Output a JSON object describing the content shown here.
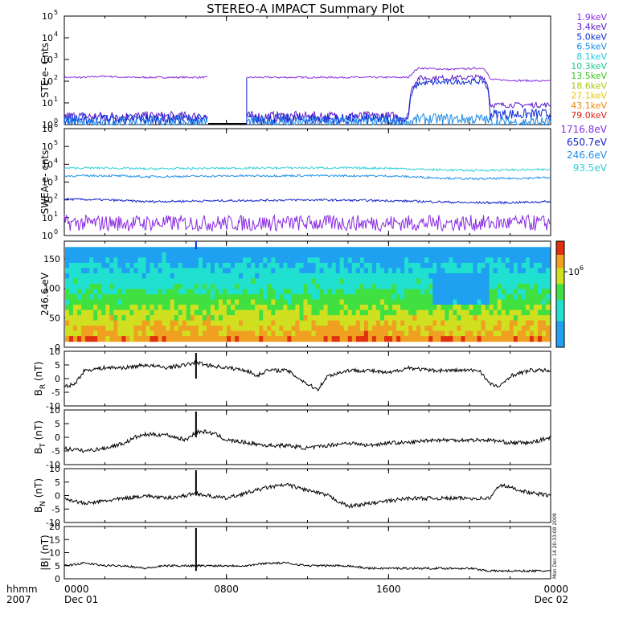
{
  "chart_data": [
    {
      "type": "line",
      "panel": "ste",
      "title": "STEREO-A IMPACT Summary Plot",
      "ylabel": "STE e- Cnts",
      "yscale": "log",
      "ylim": [
        1,
        100000
      ],
      "yticks": [
        {
          "base": "10",
          "exp": "0"
        },
        {
          "base": "10",
          "exp": "1"
        },
        {
          "base": "10",
          "exp": "2"
        },
        {
          "base": "10",
          "exp": "3"
        },
        {
          "base": "10",
          "exp": "4"
        },
        {
          "base": "10",
          "exp": "5"
        }
      ],
      "data_gap_hours": [
        7.1,
        9.0
      ],
      "legend_position": "right",
      "series": [
        {
          "name": "1.9keV",
          "color": "#8a2be2",
          "values_hours": [
            0,
            1,
            2,
            3,
            4,
            5,
            6,
            7,
            7.1,
            9.0,
            10,
            12,
            14,
            17,
            17.5,
            19,
            20.7,
            21,
            22,
            24
          ],
          "values": [
            150,
            150,
            170,
            150,
            150,
            150,
            150,
            150,
            150,
            150,
            150,
            150,
            150,
            150,
            400,
            350,
            400,
            120,
            110,
            100
          ]
        },
        {
          "name": "3.4keV",
          "color": "#5a18c8",
          "values_hours": [
            0,
            3,
            6,
            7.1,
            9,
            12,
            14,
            17,
            17.5,
            19,
            20.7,
            21,
            24
          ],
          "values": [
            2.3,
            2.3,
            2.3,
            2.3,
            2.3,
            2.3,
            2.3,
            2.3,
            140,
            140,
            150,
            8,
            8
          ]
        },
        {
          "name": "5.0keV",
          "color": "#0a2ad8",
          "values_hours": [
            0,
            3,
            6,
            7.1,
            9,
            12,
            14,
            17,
            17.5,
            19,
            20.7,
            21,
            24
          ],
          "values": [
            1.8,
            1.8,
            1.8,
            1.8,
            1.8,
            1.8,
            1.8,
            1.8,
            80,
            90,
            100,
            3,
            3
          ]
        },
        {
          "name": "6.5keV",
          "color": "#1a8ae8",
          "values_hours": [
            0,
            7.1,
            9,
            17,
            17.5,
            20.7,
            21,
            24
          ],
          "values": [
            1.3,
            1.3,
            1.3,
            1.3,
            1.8,
            1.8,
            1.3,
            1.3
          ]
        },
        {
          "name": "8.1keV",
          "color": "#20c8e0"
        },
        {
          "name": "10.3keV",
          "color": "#18c890"
        },
        {
          "name": "13.5keV",
          "color": "#38c818"
        },
        {
          "name": "18.6keV",
          "color": "#a8c810"
        },
        {
          "name": "27.1keV",
          "color": "#e8c810"
        },
        {
          "name": "43.1keV",
          "color": "#e88a10"
        },
        {
          "name": "79.0keV",
          "color": "#e02010"
        }
      ]
    },
    {
      "type": "line",
      "panel": "swea",
      "ylabel": "SWEA e- cnts",
      "yscale": "log",
      "ylim": [
        1,
        1000000
      ],
      "yticks": [
        {
          "base": "10",
          "exp": "0"
        },
        {
          "base": "10",
          "exp": "1"
        },
        {
          "base": "10",
          "exp": "2"
        },
        {
          "base": "10",
          "exp": "3"
        },
        {
          "base": "10",
          "exp": "4"
        },
        {
          "base": "10",
          "exp": "5"
        },
        {
          "base": "10",
          "exp": "6"
        }
      ],
      "legend_position": "right",
      "series": [
        {
          "name": "1716.8eV",
          "color": "#8a2be2",
          "values_hours": [
            0,
            24
          ],
          "values": [
            5,
            5
          ]
        },
        {
          "name": "650.7eV",
          "color": "#1020c8",
          "values_hours": [
            0,
            2,
            4,
            8,
            12,
            16,
            18,
            20,
            22,
            24
          ],
          "values": [
            110,
            100,
            80,
            90,
            100,
            90,
            80,
            70,
            70,
            80
          ]
        },
        {
          "name": "246.6eV",
          "color": "#2090e8",
          "values_hours": [
            0,
            2,
            4,
            8,
            12,
            16,
            18,
            20,
            22,
            24
          ],
          "values": [
            2200,
            2300,
            2000,
            2200,
            2300,
            2200,
            1800,
            1500,
            1600,
            1800
          ]
        },
        {
          "name": "93.5eV",
          "color": "#30d0d8",
          "values_hours": [
            0,
            2,
            4,
            8,
            12,
            16,
            18,
            20,
            22,
            24
          ],
          "values": [
            6000,
            6200,
            5500,
            6000,
            6300,
            6000,
            5000,
            4500,
            4800,
            5000
          ]
        }
      ]
    },
    {
      "type": "heatmap",
      "panel": "pad",
      "ylabel": "246.6 eV",
      "ylim": [
        0,
        180
      ],
      "yticks": [
        0,
        50,
        100,
        150
      ],
      "colorbar_label": {
        "base": "10",
        "exp": "6"
      }
    },
    {
      "type": "line",
      "panel": "br",
      "ylabel": {
        "main": "B",
        "sub": "R",
        "unit": "(nT)"
      },
      "ylim": [
        -10,
        10
      ],
      "yticks": [
        -10,
        -5,
        0,
        5,
        10
      ],
      "x_hours": [
        0,
        0.5,
        1,
        2,
        3,
        4,
        5,
        6,
        6.5,
        7,
        8,
        9,
        9.5,
        10,
        11,
        12,
        12.5,
        13,
        14,
        15,
        16,
        17,
        18,
        19,
        20,
        20.5,
        21,
        21.5,
        22,
        23,
        24
      ],
      "values": [
        -3,
        -2,
        3,
        4,
        4,
        5,
        4,
        5,
        6,
        5,
        4,
        3,
        1,
        3,
        3,
        -2,
        -4,
        1,
        3,
        3,
        2,
        4,
        3,
        3,
        3,
        3,
        -2,
        -3,
        1,
        3,
        3
      ],
      "spike_hour": 6.5
    },
    {
      "type": "line",
      "panel": "bt",
      "ylabel": {
        "main": "B",
        "sub": "T",
        "unit": "(nT)"
      },
      "ylim": [
        -10,
        10
      ],
      "yticks": [
        -10,
        -5,
        0,
        5,
        10
      ],
      "x_hours": [
        0,
        1,
        2,
        3,
        3.5,
        4,
        5,
        6,
        6.5,
        7,
        7.5,
        8,
        9,
        10,
        11,
        12,
        13,
        14,
        15,
        16,
        17,
        18,
        19,
        20,
        21,
        22,
        23,
        24
      ],
      "values": [
        -4,
        -5,
        -4,
        -2,
        0,
        1,
        1,
        -1,
        2,
        2,
        1,
        -1,
        -2,
        -3,
        -3,
        -4,
        -3,
        -2,
        -3,
        -2,
        -2,
        -1,
        -1,
        -1,
        -1,
        -2,
        -2,
        0
      ],
      "spike_hour": 6.5
    },
    {
      "type": "line",
      "panel": "bn",
      "ylabel": {
        "main": "B",
        "sub": "N",
        "unit": "(nT)"
      },
      "ylim": [
        -10,
        10
      ],
      "yticks": [
        -10,
        -5,
        0,
        5,
        10
      ],
      "x_hours": [
        0,
        1,
        2,
        3,
        4,
        5,
        6,
        6.5,
        7,
        8,
        9,
        10,
        11,
        12,
        13,
        14,
        15,
        16,
        17,
        18,
        19,
        20,
        21,
        21.5,
        22,
        23,
        24
      ],
      "values": [
        -1,
        -3,
        -2,
        -1,
        0,
        -1,
        0,
        1,
        0,
        -1,
        1,
        3,
        4,
        2,
        0,
        -4,
        -3,
        -2,
        -1,
        -1,
        -1,
        -1,
        -1,
        4,
        3,
        1,
        0
      ],
      "spike_hour": 6.5
    },
    {
      "type": "line",
      "panel": "babs",
      "ylabel": "|B| (nT)",
      "ylim": [
        0,
        20
      ],
      "yticks": [
        0,
        5,
        10,
        15,
        20
      ],
      "x_hours": [
        0,
        1,
        2,
        3,
        4,
        5,
        6,
        6.5,
        7,
        8,
        9,
        10,
        11,
        12,
        13,
        14,
        15,
        16,
        17,
        18,
        19,
        20,
        21,
        22,
        23,
        24
      ],
      "values": [
        5,
        6,
        5,
        5,
        4,
        5,
        5,
        5,
        5,
        5,
        5,
        6,
        6,
        5,
        5,
        5,
        4,
        4,
        4,
        4,
        4,
        4,
        3,
        3,
        3,
        3
      ],
      "spike_hour": 6.5
    }
  ],
  "x_axis": {
    "range_hours": [
      0,
      24
    ],
    "row_label_1": "hhmm",
    "row_label_2": "2007",
    "ticks": [
      {
        "hour": 0,
        "label": "0000",
        "date": "Dec 01"
      },
      {
        "hour": 8,
        "label": "0800",
        "date": ""
      },
      {
        "hour": 16,
        "label": "1600",
        "date": ""
      },
      {
        "hour": 24,
        "label": "0000",
        "date": "Dec 02"
      }
    ]
  },
  "stamp": "Mon Dec 14 20:33:08 2009"
}
